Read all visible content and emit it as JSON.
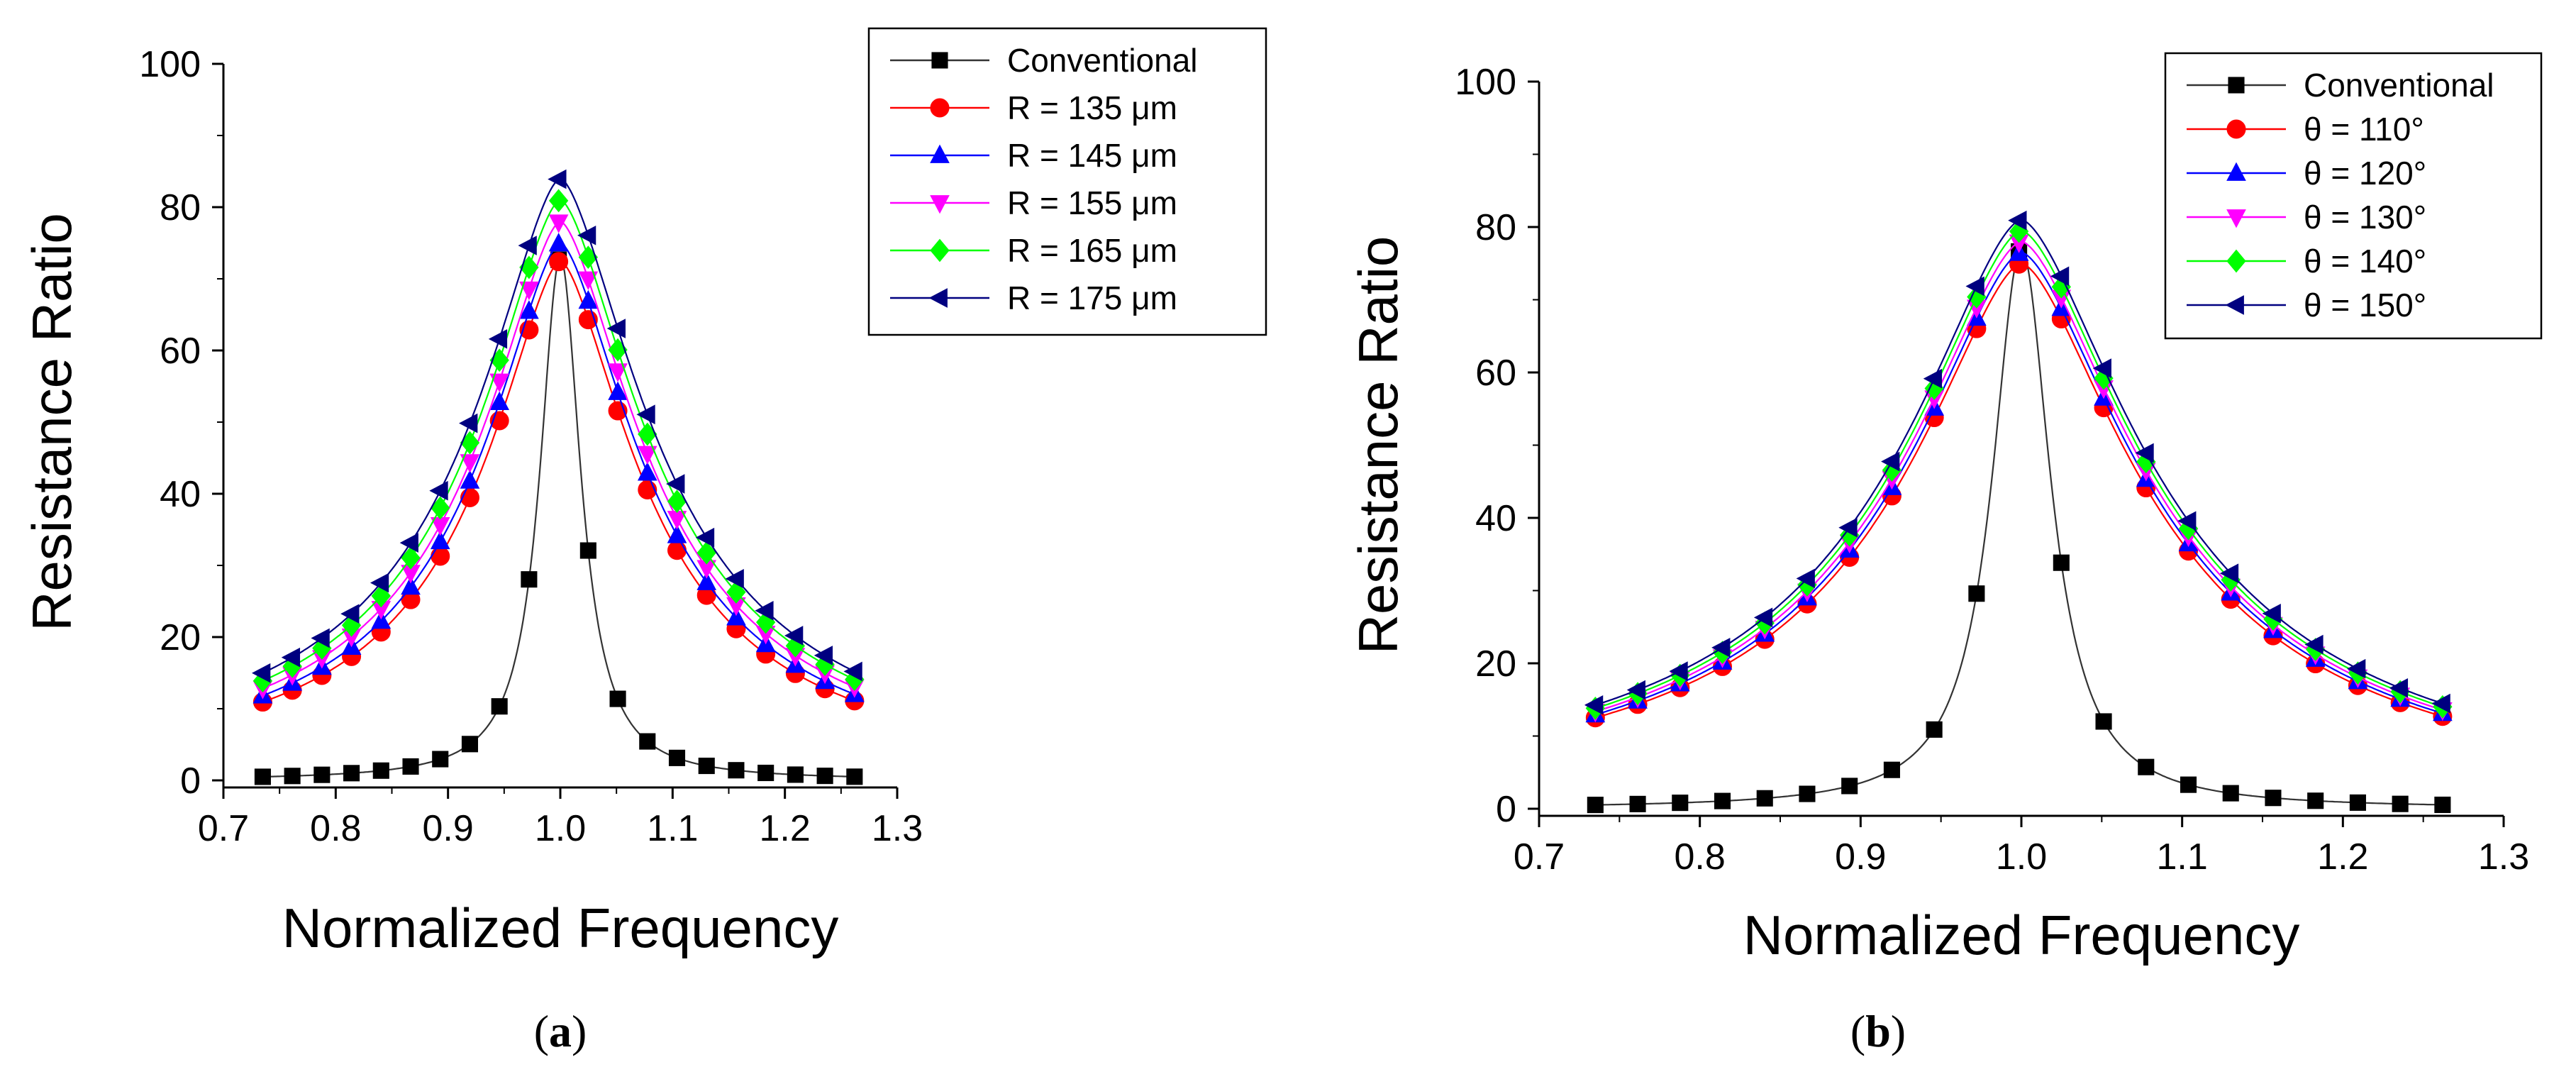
{
  "chart_data": [
    {
      "type": "line",
      "panel": "a",
      "caption": {
        "open": "(",
        "letter": "a",
        "close": ")"
      },
      "xlabel": "Normalized Frequency",
      "ylabel": "Resistance Ratio",
      "xlim": [
        0.7,
        1.3
      ],
      "ylim": [
        0,
        100
      ],
      "xticks": [
        "0.7",
        "0.8",
        "0.9",
        "1.0",
        "1.1",
        "1.2",
        "1.3"
      ],
      "yticks": [
        "0",
        "20",
        "40",
        "60",
        "80",
        "100"
      ],
      "legend_position": "top-right",
      "series": [
        {
          "name": "Conventional",
          "color": "#000000",
          "marker": "square",
          "peak": 73,
          "gamma": 0.022,
          "floor": 0,
          "power": 2
        },
        {
          "name": "R = 135 μm",
          "color": "#ff0000",
          "marker": "circle",
          "peak": 72.5,
          "gamma": 0.09,
          "floor": 0,
          "power": 1.6
        },
        {
          "name": "R = 145 μm",
          "color": "#0000ff",
          "marker": "triangle-up",
          "peak": 75,
          "gamma": 0.093,
          "floor": 0,
          "power": 1.6
        },
        {
          "name": "R = 155 μm",
          "color": "#ff00ff",
          "marker": "triangle-down",
          "peak": 78,
          "gamma": 0.096,
          "floor": 0,
          "power": 1.6
        },
        {
          "name": "R = 165 μm",
          "color": "#00ff00",
          "marker": "diamond",
          "peak": 81,
          "gamma": 0.099,
          "floor": 0,
          "power": 1.6
        },
        {
          "name": "R = 175 μm",
          "color": "#000080",
          "marker": "triangle-left",
          "peak": 84,
          "gamma": 0.102,
          "floor": 0,
          "power": 1.6
        }
      ]
    },
    {
      "type": "line",
      "panel": "b",
      "caption": {
        "open": "(",
        "letter": "b",
        "close": ")"
      },
      "xlabel": "Normalized Frequency",
      "ylabel": "Resistance Ratio",
      "xlim": [
        0.7,
        1.3
      ],
      "ylim": [
        0,
        100
      ],
      "xticks": [
        "0.7",
        "0.8",
        "0.9",
        "1.0",
        "1.1",
        "1.2",
        "1.3"
      ],
      "yticks": [
        "0",
        "20",
        "40",
        "60",
        "80",
        "100"
      ],
      "legend_position": "top-right",
      "series": [
        {
          "name": "Conventional",
          "color": "#000000",
          "marker": "square",
          "peak": 77,
          "gamma": 0.022,
          "floor": 0,
          "power": 2
        },
        {
          "name": "θ = 110°",
          "color": "#ff0000",
          "marker": "circle",
          "peak": 75,
          "gamma": 0.097,
          "floor": 0,
          "power": 1.6
        },
        {
          "name": "θ = 120°",
          "color": "#0000ff",
          "marker": "triangle-up",
          "peak": 76.5,
          "gamma": 0.098,
          "floor": 0,
          "power": 1.6
        },
        {
          "name": "θ = 130°",
          "color": "#ff00ff",
          "marker": "triangle-down",
          "peak": 78,
          "gamma": 0.099,
          "floor": 0,
          "power": 1.6
        },
        {
          "name": "θ = 140°",
          "color": "#00ff00",
          "marker": "diamond",
          "peak": 79.5,
          "gamma": 0.1,
          "floor": 0,
          "power": 1.6
        },
        {
          "name": "θ = 150°",
          "color": "#000080",
          "marker": "triangle-left",
          "peak": 81,
          "gamma": 0.101,
          "floor": 0,
          "power": 1.6
        }
      ]
    }
  ]
}
